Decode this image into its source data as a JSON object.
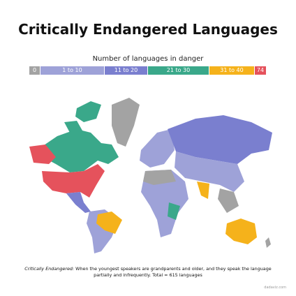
{
  "title": "Critically Endangered Languages",
  "legend": {
    "title": "Number of languages in danger",
    "items": [
      {
        "label": "0",
        "color": "#a3a3a3"
      },
      {
        "label": "1 to 10",
        "color": "#9ea2d8"
      },
      {
        "label": "11 to 20",
        "color": "#7a7fcf"
      },
      {
        "label": "21 to 30",
        "color": "#3aa88a"
      },
      {
        "label": "31 to 40",
        "color": "#f5b21b"
      },
      {
        "label": "74",
        "color": "#e5525c"
      }
    ]
  },
  "footnote": {
    "lead": "Critically Endangered:",
    "text": "When the youngest speakers are grandparents and older, and they speak the language partially and infrequently. Total = 615 languages"
  },
  "source": "dadaviz.com"
}
